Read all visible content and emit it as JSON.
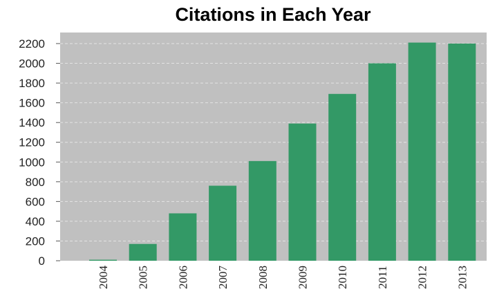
{
  "chart_data": {
    "type": "bar",
    "title": "Citations in Each Year",
    "xlabel": "",
    "ylabel": "",
    "categories": [
      "2004",
      "2005",
      "2006",
      "2007",
      "2008",
      "2009",
      "2010",
      "2011",
      "2012",
      "2013"
    ],
    "values": [
      10,
      170,
      480,
      760,
      1010,
      1390,
      1690,
      2000,
      2210,
      2200
    ],
    "ylim": [
      0,
      2300
    ],
    "yticks": [
      0,
      200,
      400,
      600,
      800,
      1000,
      1200,
      1400,
      1600,
      1800,
      2000,
      2200
    ],
    "ytick_labels": [
      "0",
      "200",
      "400",
      "600",
      "800",
      "1000",
      "1200",
      "1400",
      "1600",
      "1800",
      "2000",
      "2200"
    ],
    "grid": true,
    "legend": "none",
    "colors": {
      "bar": "#339966",
      "plot_background": "#c0c0c0",
      "grid": "#e4e4e4",
      "text": "#222222"
    }
  }
}
